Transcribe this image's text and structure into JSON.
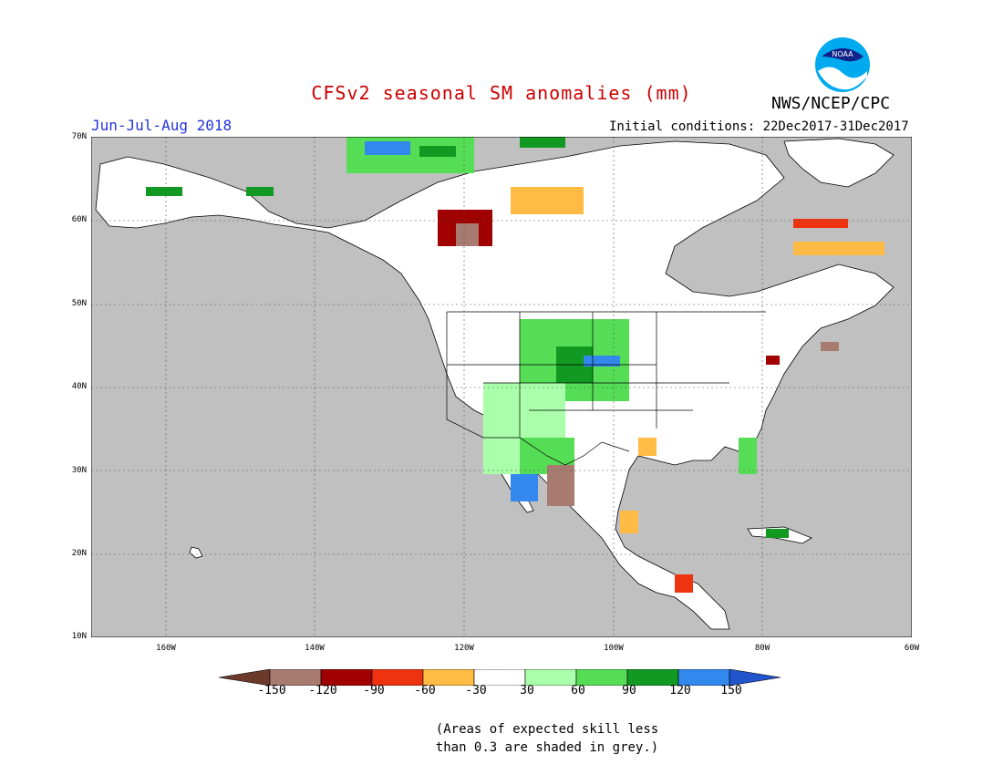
{
  "title": "CFSv2 seasonal SM anomalies (mm)",
  "period": "Jun-Jul-Aug 2018",
  "initial_conditions": "Initial conditions: 22Dec2017-31Dec2017",
  "agency": "NWS/NCEP/CPC",
  "logo_text": "NOAA",
  "map": {
    "lat_labels": [
      "70N",
      "60N",
      "50N",
      "40N",
      "30N",
      "20N",
      "10N"
    ],
    "lon_labels": [
      "160W",
      "140W",
      "120W",
      "100W",
      "80W",
      "60W"
    ],
    "lat_range": [
      10,
      70
    ],
    "lon_range": [
      -170,
      -60
    ],
    "grey_meaning": "skill < 0.3"
  },
  "colorbar": {
    "ticks": [
      "-150",
      "-120",
      "-90",
      "-60",
      "-30",
      "30",
      "60",
      "90",
      "120",
      "150"
    ],
    "colors": [
      "#6b3a2a",
      "#a87b70",
      "#a00000",
      "#ee3311",
      "#ffbb44",
      "#ffffff",
      "#aaffaa",
      "#55dd55",
      "#119922",
      "#3388ee",
      "#2255cc"
    ]
  },
  "note": [
    "(Areas of expected skill less",
    "than 0.3 are shaded in grey.)"
  ],
  "colors": {
    "title": "#cc0000",
    "period": "#2233dd",
    "grey": "#c0c0c0",
    "land": "#ffffff"
  }
}
